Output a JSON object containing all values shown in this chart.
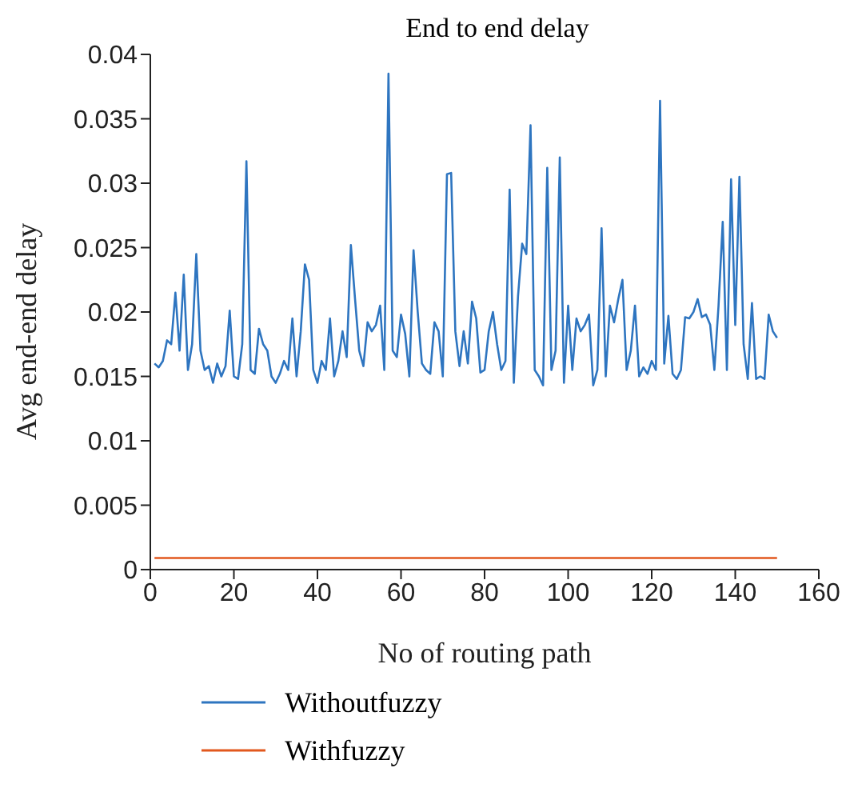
{
  "chart_data": {
    "type": "line",
    "title": "End to end delay",
    "xlabel": "No of routing path",
    "ylabel": "Avg end-end delay",
    "x": [
      1,
      2,
      3,
      4,
      5,
      6,
      7,
      8,
      9,
      10,
      11,
      12,
      13,
      14,
      15,
      16,
      17,
      18,
      19,
      20,
      21,
      22,
      23,
      24,
      25,
      26,
      27,
      28,
      29,
      30,
      31,
      32,
      33,
      34,
      35,
      36,
      37,
      38,
      39,
      40,
      41,
      42,
      43,
      44,
      45,
      46,
      47,
      48,
      49,
      50,
      51,
      52,
      53,
      54,
      55,
      56,
      57,
      58,
      59,
      60,
      61,
      62,
      63,
      64,
      65,
      66,
      67,
      68,
      69,
      70,
      71,
      72,
      73,
      74,
      75,
      76,
      77,
      78,
      79,
      80,
      81,
      82,
      83,
      84,
      85,
      86,
      87,
      88,
      89,
      90,
      91,
      92,
      93,
      94,
      95,
      96,
      97,
      98,
      99,
      100,
      101,
      102,
      103,
      104,
      105,
      106,
      107,
      108,
      109,
      110,
      111,
      112,
      113,
      114,
      115,
      116,
      117,
      118,
      119,
      120,
      121,
      122,
      123,
      124,
      125,
      126,
      127,
      128,
      129,
      130,
      131,
      132,
      133,
      134,
      135,
      136,
      137,
      138,
      139,
      140,
      141,
      142,
      143,
      144,
      145,
      146,
      147,
      148,
      149,
      150
    ],
    "series": [
      {
        "name": "Withoutfuzzy",
        "color": "#2e75c0",
        "values": [
          0.016,
          0.0157,
          0.0162,
          0.0178,
          0.0175,
          0.0215,
          0.017,
          0.0229,
          0.0155,
          0.0175,
          0.0245,
          0.017,
          0.0155,
          0.0158,
          0.0145,
          0.016,
          0.015,
          0.0158,
          0.0201,
          0.015,
          0.0148,
          0.0175,
          0.0317,
          0.0155,
          0.0152,
          0.0187,
          0.0175,
          0.017,
          0.015,
          0.0145,
          0.0152,
          0.0162,
          0.0155,
          0.0195,
          0.015,
          0.0185,
          0.0237,
          0.0225,
          0.0155,
          0.0145,
          0.0162,
          0.0155,
          0.0195,
          0.015,
          0.0162,
          0.0185,
          0.0165,
          0.0252,
          0.021,
          0.017,
          0.0158,
          0.0192,
          0.0185,
          0.019,
          0.0205,
          0.0155,
          0.0385,
          0.017,
          0.0165,
          0.0198,
          0.0183,
          0.015,
          0.0248,
          0.02,
          0.016,
          0.0155,
          0.0152,
          0.0192,
          0.0185,
          0.015,
          0.0307,
          0.0308,
          0.0185,
          0.0158,
          0.0185,
          0.016,
          0.0208,
          0.0195,
          0.0153,
          0.0155,
          0.0185,
          0.02,
          0.0175,
          0.0155,
          0.0162,
          0.0295,
          0.0145,
          0.0212,
          0.0253,
          0.0245,
          0.0345,
          0.0155,
          0.015,
          0.0143,
          0.0312,
          0.0155,
          0.017,
          0.032,
          0.0145,
          0.0205,
          0.0155,
          0.0195,
          0.0185,
          0.019,
          0.0198,
          0.0143,
          0.0155,
          0.0265,
          0.015,
          0.0205,
          0.0192,
          0.021,
          0.0225,
          0.0155,
          0.017,
          0.0205,
          0.015,
          0.0157,
          0.0152,
          0.0162,
          0.0155,
          0.0364,
          0.016,
          0.0197,
          0.0152,
          0.0148,
          0.0155,
          0.0196,
          0.0195,
          0.02,
          0.021,
          0.0196,
          0.0198,
          0.019,
          0.0155,
          0.0205,
          0.027,
          0.0155,
          0.0303,
          0.019,
          0.0305,
          0.0175,
          0.0148,
          0.0207,
          0.0148,
          0.015,
          0.0148,
          0.0198,
          0.0185,
          0.018
        ]
      },
      {
        "name": "Withfuzzy",
        "color": "#e2581e",
        "x": [
          1,
          150
        ],
        "values": [
          0.0009,
          0.0009
        ]
      }
    ],
    "xlim": [
      0,
      160
    ],
    "xticks": [
      0,
      20,
      40,
      60,
      80,
      100,
      120,
      140,
      160
    ],
    "ylim": [
      0,
      0.04
    ],
    "yticks": [
      0,
      0.005,
      0.01,
      0.015,
      0.02,
      0.025,
      0.03,
      0.035,
      0.04
    ],
    "grid": false,
    "legend": "bottom",
    "marker": "none",
    "line_style": "solid"
  }
}
